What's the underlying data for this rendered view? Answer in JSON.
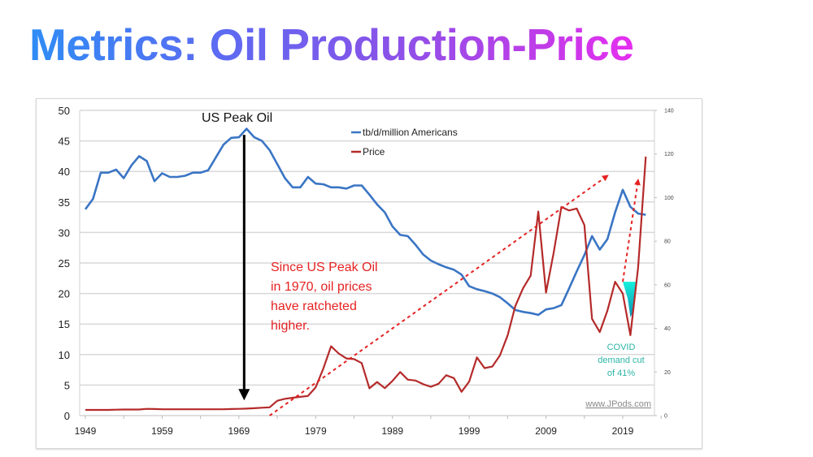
{
  "page": {
    "title": "Metrics: Oil Production-Price"
  },
  "chart_data": {
    "type": "line",
    "title": "",
    "xlabel": "",
    "ylabel_left": "",
    "ylabel_right": "",
    "x_ticks": [
      1949,
      1959,
      1969,
      1979,
      1989,
      1999,
      2009,
      2019
    ],
    "xlim": [
      1949,
      2022
    ],
    "ylim_left": [
      0,
      50
    ],
    "ylim_right": [
      0,
      140
    ],
    "y_ticks_left": [
      0,
      5,
      10,
      15,
      20,
      25,
      30,
      35,
      40,
      45,
      50
    ],
    "y_ticks_right": [
      0,
      20,
      40,
      60,
      80,
      100,
      120,
      140
    ],
    "grid": true,
    "legend_position": "top-center",
    "series": [
      {
        "name": "tb/d/million Americans",
        "axis": "left",
        "color": "#3a75c4",
        "x": [
          1949,
          1950,
          1951,
          1952,
          1953,
          1954,
          1955,
          1956,
          1957,
          1958,
          1959,
          1960,
          1961,
          1962,
          1963,
          1964,
          1965,
          1966,
          1967,
          1968,
          1969,
          1970,
          1971,
          1972,
          1973,
          1974,
          1975,
          1976,
          1977,
          1978,
          1979,
          1980,
          1981,
          1982,
          1983,
          1984,
          1985,
          1986,
          1987,
          1988,
          1989,
          1990,
          1991,
          1992,
          1993,
          1994,
          1995,
          1996,
          1997,
          1998,
          1999,
          2000,
          2001,
          2002,
          2003,
          2004,
          2005,
          2006,
          2007,
          2008,
          2009,
          2010,
          2011,
          2012,
          2013,
          2014,
          2015,
          2016,
          2017,
          2018,
          2019,
          2020,
          2021,
          2022
        ],
        "values": [
          33.8,
          35.5,
          39.8,
          39.8,
          40.3,
          38.9,
          41.0,
          42.5,
          41.7,
          38.4,
          39.7,
          39.1,
          39.1,
          39.3,
          39.8,
          39.8,
          40.2,
          42.3,
          44.4,
          45.5,
          45.6,
          47.0,
          45.6,
          45.0,
          43.5,
          41.2,
          38.9,
          37.4,
          37.4,
          39.1,
          38.0,
          37.9,
          37.4,
          37.4,
          37.2,
          37.7,
          37.7,
          36.2,
          34.6,
          33.3,
          31.0,
          29.6,
          29.4,
          28.0,
          26.4,
          25.4,
          24.8,
          24.3,
          23.9,
          23.1,
          21.2,
          20.7,
          20.4,
          20.0,
          19.4,
          18.4,
          17.3,
          17.0,
          16.8,
          16.5,
          17.4,
          17.6,
          18.1,
          20.8,
          23.6,
          26.3,
          29.4,
          27.2,
          28.9,
          33.3,
          37.0,
          34.2,
          33.1,
          32.9
        ]
      },
      {
        "name": "Price",
        "axis": "right",
        "color": "#b52a2a",
        "x": [
          1949,
          1950,
          1951,
          1952,
          1953,
          1954,
          1955,
          1956,
          1957,
          1958,
          1959,
          1960,
          1961,
          1962,
          1963,
          1964,
          1965,
          1966,
          1967,
          1968,
          1969,
          1970,
          1971,
          1972,
          1973,
          1974,
          1975,
          1976,
          1977,
          1978,
          1979,
          1980,
          1981,
          1982,
          1983,
          1984,
          1985,
          1986,
          1987,
          1988,
          1989,
          1990,
          1991,
          1992,
          1993,
          1994,
          1995,
          1996,
          1997,
          1998,
          1999,
          2000,
          2001,
          2002,
          2003,
          2004,
          2005,
          2006,
          2007,
          2008,
          2009,
          2010,
          2011,
          2012,
          2013,
          2014,
          2015,
          2016,
          2017,
          2018,
          2019,
          2020,
          2021,
          2022
        ],
        "values": [
          2.6,
          2.6,
          2.6,
          2.6,
          2.7,
          2.8,
          2.8,
          2.8,
          3.1,
          3.0,
          2.9,
          2.9,
          2.9,
          2.9,
          2.9,
          2.9,
          2.9,
          2.9,
          2.9,
          3.0,
          3.1,
          3.2,
          3.4,
          3.6,
          3.8,
          6.8,
          7.7,
          8.2,
          8.6,
          9.0,
          13.0,
          21.6,
          31.8,
          28.5,
          26.2,
          25.9,
          24.1,
          12.5,
          15.4,
          12.6,
          15.9,
          20.0,
          16.5,
          16.1,
          14.4,
          13.2,
          14.6,
          18.5,
          17.2,
          10.9,
          15.6,
          26.7,
          21.8,
          22.5,
          27.6,
          36.8,
          50.2,
          58.3,
          64.2,
          93.6,
          56.4,
          74.7,
          95.7,
          94.1,
          95.0,
          87.4,
          44.4,
          38.3,
          48.1,
          61.4,
          56.0,
          36.9,
          68.0,
          118.8
        ]
      }
    ],
    "annotations": [
      {
        "id": "peak_label",
        "text": "US Peak Oil",
        "x": 1970
      },
      {
        "id": "note_line_1",
        "text": "Since US Peak Oil"
      },
      {
        "id": "note_line_2",
        "text": "in 1970, oil prices"
      },
      {
        "id": "note_line_3",
        "text": "have ratcheted"
      },
      {
        "id": "note_line_4",
        "text": "higher."
      },
      {
        "id": "covid_line_1",
        "text": "COVID"
      },
      {
        "id": "covid_line_2",
        "text": "demand cut"
      },
      {
        "id": "covid_line_3",
        "text": "of 41%"
      },
      {
        "id": "source",
        "text": "www.JPods.com"
      }
    ],
    "trend_arrows": [
      {
        "from": [
          1973,
          0
        ],
        "to": [
          2017,
          110
        ],
        "axis": "right",
        "style": "dotted",
        "color": "#e52222"
      },
      {
        "from": [
          2019,
          61.4
        ],
        "to": [
          2021,
          108
        ],
        "axis": "right",
        "style": "dotted",
        "color": "#e52222"
      }
    ],
    "covid_fill": {
      "from_year": 2019,
      "to_year": 2021,
      "top": 61.4,
      "bottom": 36.9,
      "axis": "right",
      "color": "#12d8c8"
    },
    "peak_arrow": {
      "x": 1970,
      "from_left_value": 46,
      "to_left_value": 2.5,
      "color": "#000000"
    }
  }
}
